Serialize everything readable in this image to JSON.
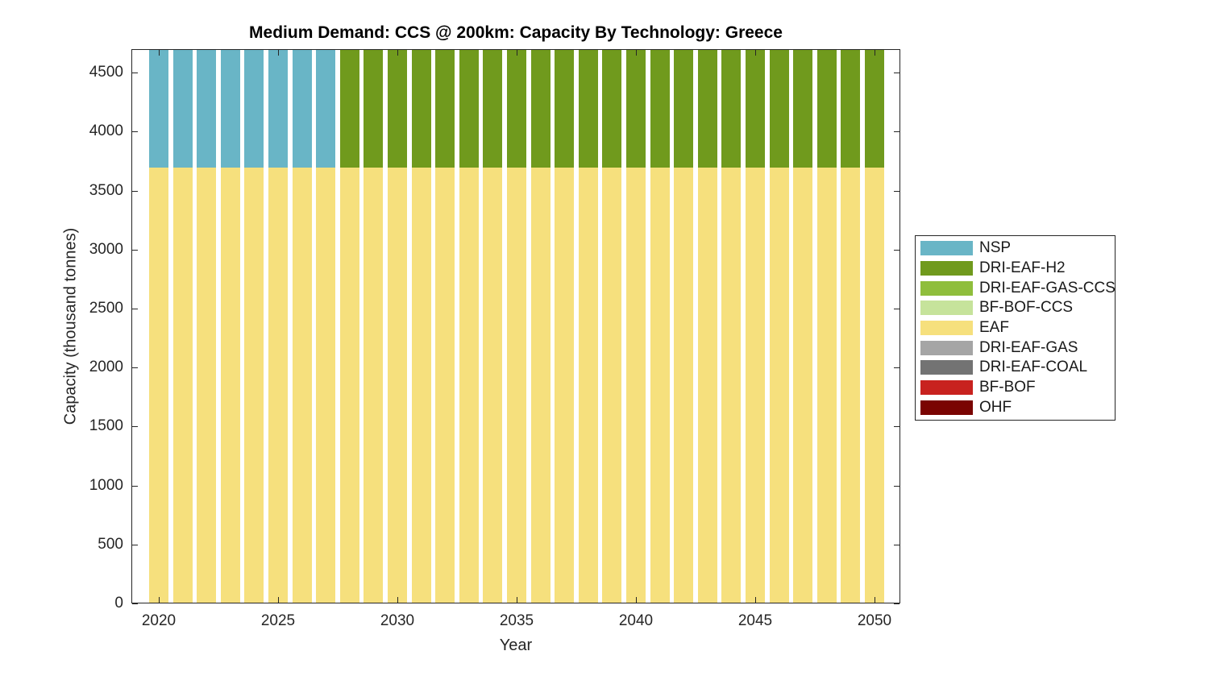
{
  "figure": {
    "title": "Medium Demand: CCS @ 200km: Capacity By Technology: Greece",
    "xlabel": "Year",
    "ylabel": "Capacity (thousand tonnes)"
  },
  "colors": {
    "axis": "#262626",
    "background": "#ffffff",
    "nsp": "#69B5C6",
    "dri_eaf_h2": "#709A1D",
    "dri_eaf_gas_ccs": "#8FBE3C",
    "bf_bof_ccs": "#C6E39B",
    "eaf": "#F6E07D",
    "dri_eaf_gas": "#A5A5A5",
    "dri_eaf_coal": "#737373",
    "bf_bof": "#C8221F",
    "ohf": "#7A0402"
  },
  "chart_data": {
    "type": "bar",
    "stacked": true,
    "title": "Medium Demand: CCS @ 200km: Capacity By Technology: Greece",
    "xlabel": "Year",
    "ylabel": "Capacity (thousand tonnes)",
    "x": [
      2020,
      2021,
      2022,
      2023,
      2024,
      2025,
      2026,
      2027,
      2028,
      2029,
      2030,
      2031,
      2032,
      2033,
      2034,
      2035,
      2036,
      2037,
      2038,
      2039,
      2040,
      2041,
      2042,
      2043,
      2044,
      2045,
      2046,
      2047,
      2048,
      2049,
      2050
    ],
    "xticks": [
      2020,
      2025,
      2030,
      2035,
      2040,
      2045,
      2050
    ],
    "yticks": [
      0,
      500,
      1000,
      1500,
      2000,
      2500,
      3000,
      3500,
      4000,
      4500
    ],
    "ylim": [
      0,
      4700
    ],
    "grid": false,
    "legend_position": "outside-right",
    "stack_note": "EAF forms the bottom of every bar (~3700); NSP tops bars 2020-2027 and DRI-EAF-H2 tops bars 2028-2050; stacks reach the axis top (~4700). Series are stacked bottom-to-top in reverse legend order.",
    "series": [
      {
        "name": "NSP",
        "color": "#69B5C6",
        "values": [
          1000,
          1000,
          1000,
          1000,
          1000,
          1000,
          1000,
          1000,
          0,
          0,
          0,
          0,
          0,
          0,
          0,
          0,
          0,
          0,
          0,
          0,
          0,
          0,
          0,
          0,
          0,
          0,
          0,
          0,
          0,
          0,
          0
        ]
      },
      {
        "name": "DRI-EAF-H2",
        "color": "#709A1D",
        "values": [
          0,
          0,
          0,
          0,
          0,
          0,
          0,
          0,
          1000,
          1000,
          1000,
          1000,
          1000,
          1000,
          1000,
          1000,
          1000,
          1000,
          1000,
          1000,
          1000,
          1000,
          1000,
          1000,
          1000,
          1000,
          1000,
          1000,
          1000,
          1000,
          1000
        ]
      },
      {
        "name": "DRI-EAF-GAS-CCS",
        "color": "#8FBE3C",
        "values": [
          0,
          0,
          0,
          0,
          0,
          0,
          0,
          0,
          0,
          0,
          0,
          0,
          0,
          0,
          0,
          0,
          0,
          0,
          0,
          0,
          0,
          0,
          0,
          0,
          0,
          0,
          0,
          0,
          0,
          0,
          0
        ]
      },
      {
        "name": "BF-BOF-CCS",
        "color": "#C6E39B",
        "values": [
          0,
          0,
          0,
          0,
          0,
          0,
          0,
          0,
          0,
          0,
          0,
          0,
          0,
          0,
          0,
          0,
          0,
          0,
          0,
          0,
          0,
          0,
          0,
          0,
          0,
          0,
          0,
          0,
          0,
          0,
          0
        ]
      },
      {
        "name": "EAF",
        "color": "#F6E07D",
        "values": [
          3700,
          3700,
          3700,
          3700,
          3700,
          3700,
          3700,
          3700,
          3700,
          3700,
          3700,
          3700,
          3700,
          3700,
          3700,
          3700,
          3700,
          3700,
          3700,
          3700,
          3700,
          3700,
          3700,
          3700,
          3700,
          3700,
          3700,
          3700,
          3700,
          3700,
          3700
        ]
      },
      {
        "name": "DRI-EAF-GAS",
        "color": "#A5A5A5",
        "values": [
          0,
          0,
          0,
          0,
          0,
          0,
          0,
          0,
          0,
          0,
          0,
          0,
          0,
          0,
          0,
          0,
          0,
          0,
          0,
          0,
          0,
          0,
          0,
          0,
          0,
          0,
          0,
          0,
          0,
          0,
          0
        ]
      },
      {
        "name": "DRI-EAF-COAL",
        "color": "#737373",
        "values": [
          0,
          0,
          0,
          0,
          0,
          0,
          0,
          0,
          0,
          0,
          0,
          0,
          0,
          0,
          0,
          0,
          0,
          0,
          0,
          0,
          0,
          0,
          0,
          0,
          0,
          0,
          0,
          0,
          0,
          0,
          0
        ]
      },
      {
        "name": "BF-BOF",
        "color": "#C8221F",
        "values": [
          0,
          0,
          0,
          0,
          0,
          0,
          0,
          0,
          0,
          0,
          0,
          0,
          0,
          0,
          0,
          0,
          0,
          0,
          0,
          0,
          0,
          0,
          0,
          0,
          0,
          0,
          0,
          0,
          0,
          0,
          0
        ]
      },
      {
        "name": "OHF",
        "color": "#7A0402",
        "values": [
          0,
          0,
          0,
          0,
          0,
          0,
          0,
          0,
          0,
          0,
          0,
          0,
          0,
          0,
          0,
          0,
          0,
          0,
          0,
          0,
          0,
          0,
          0,
          0,
          0,
          0,
          0,
          0,
          0,
          0,
          0
        ]
      }
    ]
  }
}
